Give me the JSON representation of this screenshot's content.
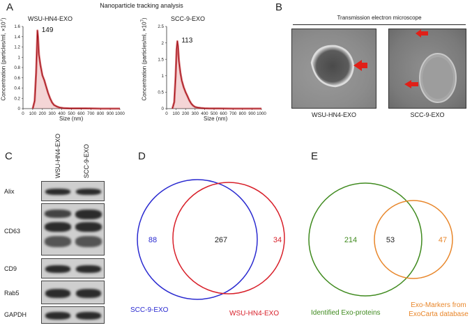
{
  "panels": {
    "A": "A",
    "B": "B",
    "C": "C",
    "D": "D",
    "E": "E"
  },
  "panel_a": {
    "title": "Nanoparticle tracking analysis",
    "ylabel": "Concentration (particles/ml, ×10",
    "ylabel_exp": "7",
    "ylabel_end": ")",
    "xlabel": "Size (nm)"
  },
  "panel_b": {
    "title": "Transmission electron microscope",
    "labels": [
      "WSU-HN4-EXO",
      "SCC-9-EXO"
    ]
  },
  "panel_c": {
    "lanes": [
      "WSU-HN4-EXO",
      "SCC-9-EXO"
    ],
    "markers": [
      "Alix",
      "CD63",
      "CD9",
      "Rab5",
      "GAPDH"
    ]
  },
  "colors": {
    "curve": "#a01018",
    "curve_fill": "#c0141c",
    "blue_circle": "#2a2ad0",
    "red_circle": "#d8202a",
    "green_circle": "#3f8a1e",
    "orange_circle": "#e8862a",
    "tem_arrow": "#e02018"
  },
  "chart_data": [
    {
      "type": "line",
      "title": "WSU-HN4-EXO",
      "peak_label": "149",
      "xlabel": "Size (nm)",
      "ylabel": "Concentration (particles/ml, ×10^7)",
      "xlim": [
        0,
        1000
      ],
      "ylim": [
        0,
        1.6
      ],
      "xticks": [
        "0",
        "100",
        "200",
        "300",
        "400",
        "500",
        "600",
        "700",
        "800",
        "900",
        "1000"
      ],
      "yticks": [
        "0",
        "0.2",
        "0.4",
        "0.6",
        "0.8",
        "1",
        "1.2",
        "1.4",
        "1.6"
      ],
      "series": [
        {
          "x": [
            100,
            120,
            135,
            145,
            149,
            155,
            165,
            180,
            200,
            220,
            240,
            260,
            280,
            300,
            320,
            350,
            380,
            420,
            480,
            550,
            650,
            800,
            1000
          ],
          "y": [
            0,
            0.15,
            0.7,
            1.3,
            1.52,
            1.4,
            1.05,
            0.85,
            0.65,
            0.55,
            0.42,
            0.3,
            0.2,
            0.12,
            0.07,
            0.04,
            0.02,
            0.01,
            0.005,
            0.005,
            0.005,
            0,
            0
          ]
        }
      ]
    },
    {
      "type": "line",
      "title": "SCC-9-EXO",
      "peak_label": "113",
      "xlabel": "Size (nm)",
      "ylabel": "Concentration (particles/ml, ×10^7)",
      "xlim": [
        0,
        1000
      ],
      "ylim": [
        0,
        2.5
      ],
      "xticks": [
        "0",
        "100",
        "200",
        "300",
        "400",
        "500",
        "600",
        "700",
        "800",
        "900",
        "1000"
      ],
      "yticks": [
        "0",
        "0.5",
        "1",
        "1.5",
        "2",
        "2.5"
      ],
      "series": [
        {
          "x": [
            60,
            80,
            95,
            105,
            113,
            120,
            130,
            145,
            160,
            180,
            200,
            220,
            240,
            260,
            280,
            300,
            330,
            360,
            400,
            450,
            550,
            700,
            1000
          ],
          "y": [
            0,
            0.2,
            1.0,
            1.8,
            2.05,
            1.9,
            1.45,
            1.1,
            0.85,
            0.65,
            0.5,
            0.38,
            0.25,
            0.15,
            0.09,
            0.05,
            0.03,
            0.02,
            0.01,
            0.005,
            0.005,
            0,
            0
          ]
        }
      ]
    },
    {
      "type": "venn",
      "sets": [
        {
          "name": "SCC-9-EXO",
          "only": 88
        },
        {
          "name": "WSU-HN4-EXO",
          "only": 34
        }
      ],
      "intersection": 267
    },
    {
      "type": "venn",
      "sets": [
        {
          "name": "Identified Exo-proteins",
          "only": 214
        },
        {
          "name": "Exo-Markers from ExoCarta database",
          "only": 47
        }
      ],
      "intersection": 53
    }
  ],
  "venn_e_labels": {
    "left": "Identified Exo-proteins",
    "right_line1": "Exo-Markers from",
    "right_line2": "ExoCarta database"
  }
}
